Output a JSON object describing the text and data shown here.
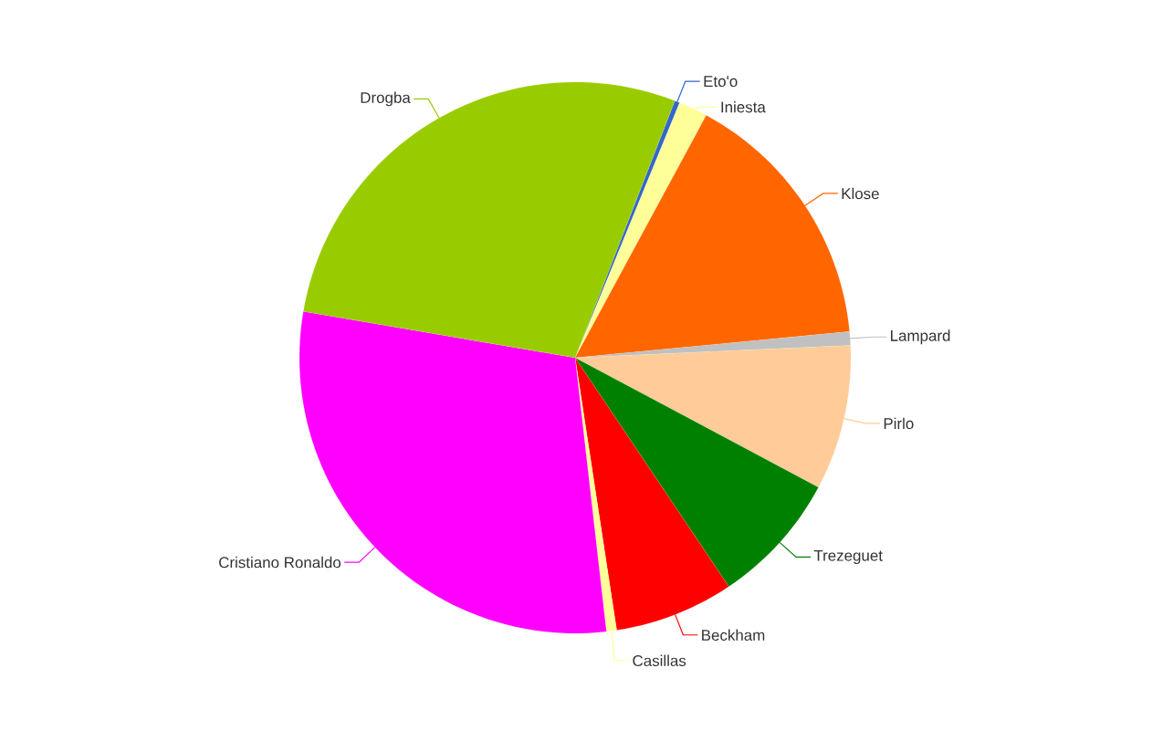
{
  "chart_data": {
    "type": "pie",
    "categories": [
      "Eto'o",
      "Iniesta",
      "Klose",
      "Lampard",
      "Pirlo",
      "Trezeguet",
      "Beckham",
      "Casillas",
      "Cristiano Ronaldo",
      "Drogba"
    ],
    "values": [
      0.3,
      1.7,
      15.6,
      0.8,
      8.5,
      7.8,
      7.0,
      0.6,
      29.5,
      28.2
    ],
    "colors": [
      "#3366cc",
      "#ffff99",
      "#ff6600",
      "#c0c0c0",
      "#ffcc99",
      "#008000",
      "#ff0000",
      "#ffff99",
      "#ff00ff",
      "#99cc00"
    ]
  }
}
